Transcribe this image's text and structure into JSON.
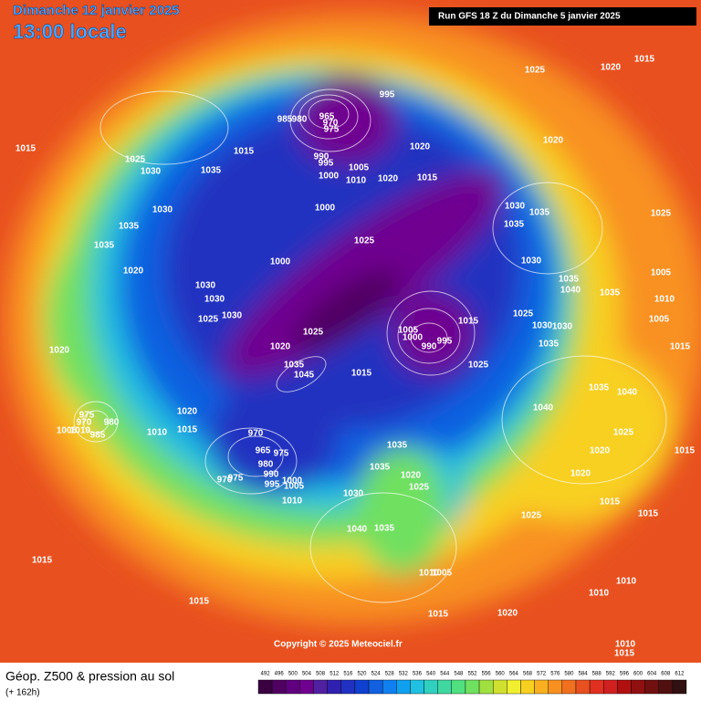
{
  "header": {
    "date": "Dimanche 12 janvier 2025",
    "time": "13:00 locale",
    "run": "Run GFS 18 Z du Dimanche 5 janvier 2025"
  },
  "copyright": "Copyright © 2025 Meteociel.fr",
  "legend": {
    "title": "Géop. Z500 & pression au sol",
    "lead": "(+ 162h)",
    "values": [
      492,
      496,
      500,
      504,
      508,
      512,
      516,
      520,
      524,
      528,
      532,
      536,
      540,
      544,
      548,
      552,
      556,
      560,
      564,
      568,
      572,
      576,
      580,
      584,
      588,
      592,
      596,
      600,
      604,
      608,
      612
    ],
    "colors": [
      "#3a0040",
      "#500060",
      "#600080",
      "#700090",
      "#5020a0",
      "#3020b0",
      "#2030c0",
      "#1040d0",
      "#1060e0",
      "#1080f0",
      "#10a0f0",
      "#20c0e0",
      "#30d0c0",
      "#40d8a0",
      "#50e080",
      "#70e060",
      "#a0e040",
      "#d0e030",
      "#f0f030",
      "#f8d020",
      "#f8b020",
      "#f89020",
      "#f07020",
      "#e85020",
      "#e03020",
      "#d02020",
      "#b01010",
      "#901010",
      "#701010",
      "#501010",
      "#301010"
    ]
  },
  "pressure_labels": [
    1015,
    1025,
    1030,
    1035,
    1015,
    1030,
    1035,
    1035,
    1020,
    1030,
    1030,
    1025,
    1030,
    1020,
    1000,
    985,
    980,
    965,
    970,
    975,
    995,
    990,
    995,
    1000,
    1005,
    1010,
    1020,
    1000,
    1025,
    1020,
    1015,
    1025,
    1020,
    1015,
    1020,
    1030,
    1035,
    1035,
    1030,
    1025,
    1035,
    1040,
    1035,
    1005,
    1010,
    1005,
    1025,
    1030,
    1030,
    1035,
    1015,
    990,
    995,
    1000,
    1005,
    1025,
    1015,
    1025,
    1020,
    1015,
    1045,
    1035,
    1020,
    1015,
    1010,
    975,
    970,
    980,
    1005,
    1010,
    985,
    970,
    975,
    965,
    980,
    990,
    995,
    1000,
    1005,
    975,
    970,
    1010,
    1040,
    1035,
    1040,
    1025,
    1020,
    1015,
    1020,
    1035,
    1035,
    1020,
    1025,
    1030,
    1040,
    1035,
    1025,
    1015,
    1015,
    1010,
    1005,
    1015,
    1015,
    1015,
    1020,
    1010,
    1010,
    1010,
    1015
  ]
}
